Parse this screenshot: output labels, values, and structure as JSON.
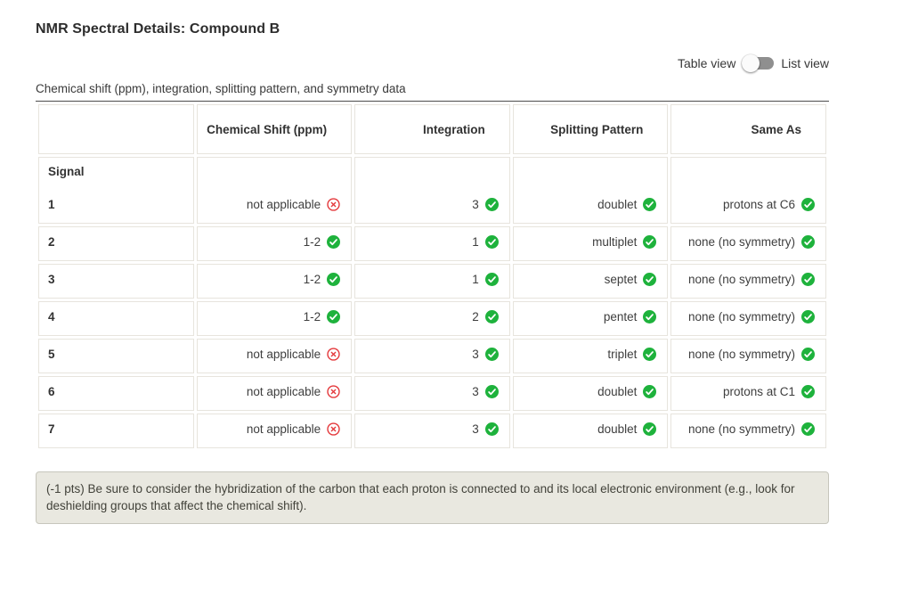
{
  "page": {
    "title": "NMR Spectral Details: Compound B",
    "caption": "Chemical shift (ppm), integration, splitting pattern, and symmetry data"
  },
  "view_toggle": {
    "left_label": "Table view",
    "right_label": "List view",
    "selected": "Table view"
  },
  "table": {
    "group_label": "Signal",
    "columns": {
      "signal": "",
      "shift": "Chemical Shift (ppm)",
      "integration": "Integration",
      "splitting": "Splitting Pattern",
      "same_as": "Same As"
    },
    "rows": [
      {
        "signal": "1",
        "shift": {
          "text": "not applicable",
          "status": "incorrect"
        },
        "integration": {
          "text": "3",
          "status": "correct"
        },
        "splitting": {
          "text": "doublet",
          "status": "correct"
        },
        "same_as": {
          "text": "protons at C6",
          "status": "correct"
        }
      },
      {
        "signal": "2",
        "shift": {
          "text": "1-2",
          "status": "correct"
        },
        "integration": {
          "text": "1",
          "status": "correct"
        },
        "splitting": {
          "text": "multiplet",
          "status": "correct"
        },
        "same_as": {
          "text": "none (no symmetry)",
          "status": "correct"
        }
      },
      {
        "signal": "3",
        "shift": {
          "text": "1-2",
          "status": "correct"
        },
        "integration": {
          "text": "1",
          "status": "correct"
        },
        "splitting": {
          "text": "septet",
          "status": "correct"
        },
        "same_as": {
          "text": "none (no symmetry)",
          "status": "correct"
        }
      },
      {
        "signal": "4",
        "shift": {
          "text": "1-2",
          "status": "correct"
        },
        "integration": {
          "text": "2",
          "status": "correct"
        },
        "splitting": {
          "text": "pentet",
          "status": "correct"
        },
        "same_as": {
          "text": "none (no symmetry)",
          "status": "correct"
        }
      },
      {
        "signal": "5",
        "shift": {
          "text": "not applicable",
          "status": "incorrect"
        },
        "integration": {
          "text": "3",
          "status": "correct"
        },
        "splitting": {
          "text": "triplet",
          "status": "correct"
        },
        "same_as": {
          "text": "none (no symmetry)",
          "status": "correct"
        }
      },
      {
        "signal": "6",
        "shift": {
          "text": "not applicable",
          "status": "incorrect"
        },
        "integration": {
          "text": "3",
          "status": "correct"
        },
        "splitting": {
          "text": "doublet",
          "status": "correct"
        },
        "same_as": {
          "text": "protons at C1",
          "status": "correct"
        }
      },
      {
        "signal": "7",
        "shift": {
          "text": "not applicable",
          "status": "incorrect"
        },
        "integration": {
          "text": "3",
          "status": "correct"
        },
        "splitting": {
          "text": "doublet",
          "status": "correct"
        },
        "same_as": {
          "text": "none (no symmetry)",
          "status": "correct"
        }
      }
    ]
  },
  "feedback_note": {
    "text": "(-1 pts) Be sure to consider the hybridization of the carbon that each proton is connected to and its local electronic environment (e.g., look for deshielding groups that affect the chemical shift)."
  },
  "colors": {
    "correct": "#1eb23c",
    "incorrect": "#e4393c"
  }
}
